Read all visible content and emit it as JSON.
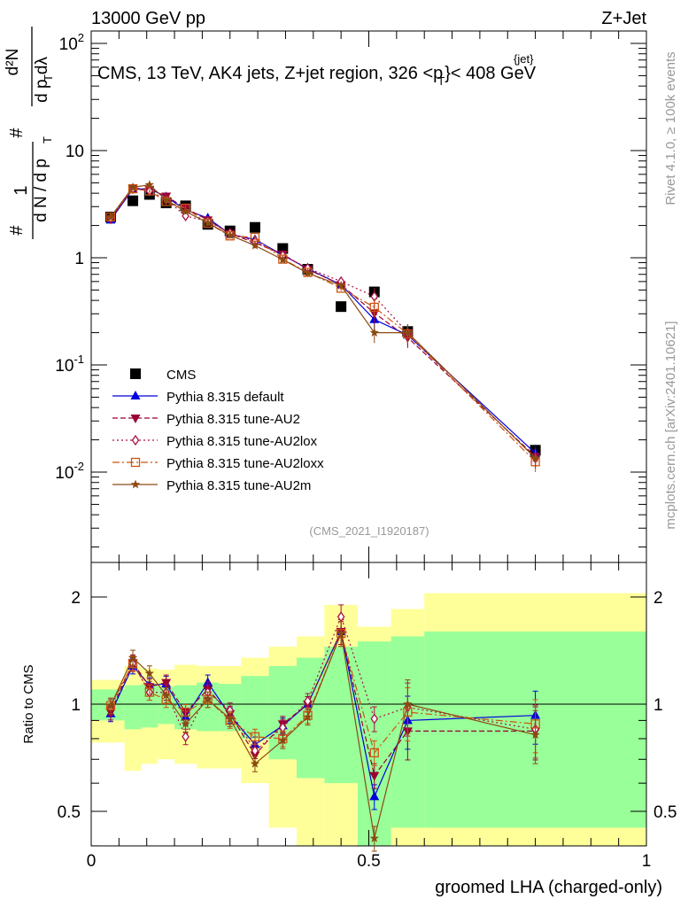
{
  "header": {
    "left_title": "13000 GeV pp",
    "right_title": "Z+Jet",
    "plot_title": "CMS, 13 TeV, AK4 jets, Z+jet region, 326 <p",
    "plot_title_sup": "{jet}",
    "plot_title_sub": "T",
    "plot_title_end": "}< 408 GeV",
    "analysis_id": "(CMS_2021_I1920187)"
  },
  "side_labels": {
    "rivet": "Rivet 4.1.0, ≥ 100k events",
    "mcplots": "mcplots.cern.ch [arXiv:2401.10621]"
  },
  "colors": {
    "cms": "#000000",
    "default": "#0000dd",
    "au2": "#990033",
    "au2lox": "#aa1144",
    "au2loxx": "#cc5511",
    "au2m": "#8b4a12",
    "band_green": "#99ff99",
    "band_yellow": "#ffff99"
  },
  "chart_data": [
    {
      "type": "scatter",
      "panel": "main",
      "yscale": "log",
      "ylabel": "# 1/(d N / d p_T) # d²N/(d p_T dλ)",
      "y_tick_labels": [
        "10^-2",
        "10^-1",
        "1",
        "10",
        "10^2"
      ],
      "xlim": [
        0,
        1
      ],
      "ylim": [
        0.0015,
        140
      ],
      "x": [
        0.035,
        0.075,
        0.105,
        0.135,
        0.17,
        0.21,
        0.25,
        0.295,
        0.345,
        0.39,
        0.45,
        0.51,
        0.57,
        0.8
      ],
      "series": [
        {
          "name": "CMS",
          "marker": "square",
          "style": "none",
          "values": [
            2.4,
            3.4,
            3.9,
            3.25,
            3.05,
            2.05,
            1.78,
            1.92,
            1.22,
            0.78,
            0.35,
            0.48,
            0.205,
            0.016
          ]
        },
        {
          "name": "Pythia 8.315 default",
          "marker": "triangle-up",
          "style": "solid",
          "values": [
            2.25,
            4.35,
            4.4,
            3.7,
            2.8,
            2.35,
            1.66,
            1.48,
            1.06,
            0.79,
            0.56,
            0.265,
            0.19,
            0.015
          ]
        },
        {
          "name": "Pythia 8.315 tune-AU2",
          "marker": "triangle-down",
          "style": "dashed",
          "values": [
            2.3,
            4.45,
            4.35,
            3.75,
            2.9,
            2.25,
            1.68,
            1.38,
            1.08,
            0.78,
            0.56,
            0.305,
            0.18,
            0.014
          ]
        },
        {
          "name": "Pythia 8.315 tune-AU2lox",
          "marker": "diamond",
          "style": "dashdot",
          "values": [
            2.35,
            4.4,
            4.2,
            3.5,
            2.45,
            2.2,
            1.7,
            1.42,
            1.05,
            0.8,
            0.6,
            0.435,
            0.2,
            0.0135
          ]
        },
        {
          "name": "Pythia 8.315 tune-AU2loxx",
          "marker": "open-square",
          "style": "longdash",
          "values": [
            2.4,
            4.4,
            4.2,
            3.35,
            2.9,
            2.1,
            1.6,
            1.55,
            0.97,
            0.73,
            0.52,
            0.345,
            0.195,
            0.0125
          ]
        },
        {
          "name": "Pythia 8.315 tune-AU2m",
          "marker": "star",
          "style": "solid",
          "values": [
            2.4,
            4.55,
            4.8,
            3.45,
            2.7,
            2.12,
            1.62,
            1.3,
            0.96,
            0.72,
            0.55,
            0.2,
            0.2,
            0.0135
          ]
        }
      ]
    },
    {
      "type": "scatter",
      "panel": "ratio",
      "xlabel": "groomed LHA (charged-only)",
      "ylabel": "Ratio to CMS",
      "xlim": [
        0,
        1
      ],
      "ylim": [
        0.35,
        2.25
      ],
      "x_tick_labels": [
        "0",
        "0.5",
        "1"
      ],
      "y_tick_labels": [
        "0.5",
        "1",
        "2"
      ],
      "x": [
        0.035,
        0.075,
        0.105,
        0.135,
        0.17,
        0.21,
        0.25,
        0.295,
        0.345,
        0.39,
        0.45,
        0.51,
        0.57,
        0.8
      ],
      "bins": [
        [
          0,
          0.06
        ],
        [
          0.06,
          0.09
        ],
        [
          0.09,
          0.12
        ],
        [
          0.12,
          0.15
        ],
        [
          0.15,
          0.19
        ],
        [
          0.19,
          0.23
        ],
        [
          0.23,
          0.27
        ],
        [
          0.27,
          0.32
        ],
        [
          0.32,
          0.37
        ],
        [
          0.37,
          0.42
        ],
        [
          0.42,
          0.48
        ],
        [
          0.48,
          0.54
        ],
        [
          0.54,
          0.6
        ],
        [
          0.6,
          1.0
        ]
      ],
      "band_green": [
        [
          0.9,
          1.1
        ],
        [
          0.85,
          1.13
        ],
        [
          0.86,
          1.14
        ],
        [
          0.88,
          1.12
        ],
        [
          0.85,
          1.13
        ],
        [
          0.84,
          1.15
        ],
        [
          0.84,
          1.14
        ],
        [
          0.8,
          1.2
        ],
        [
          0.7,
          1.28
        ],
        [
          0.62,
          1.35
        ],
        [
          0.6,
          1.45
        ],
        [
          0.4,
          1.5
        ],
        [
          0.45,
          1.55
        ],
        [
          0.45,
          1.6
        ]
      ],
      "band_yellow": [
        [
          0.78,
          1.17
        ],
        [
          0.65,
          1.28
        ],
        [
          0.68,
          1.26
        ],
        [
          0.7,
          1.25
        ],
        [
          0.68,
          1.29
        ],
        [
          0.66,
          1.28
        ],
        [
          0.66,
          1.28
        ],
        [
          0.6,
          1.35
        ],
        [
          0.45,
          1.45
        ],
        [
          0.35,
          1.55
        ],
        [
          0.35,
          1.9
        ],
        [
          0.35,
          1.65
        ],
        [
          0.35,
          1.85
        ],
        [
          0.35,
          2.05
        ]
      ],
      "series": [
        {
          "name": "Pythia 8.315 default",
          "values": [
            0.94,
            1.28,
            1.13,
            1.14,
            0.92,
            1.15,
            0.93,
            0.77,
            0.87,
            1.0,
            1.6,
            0.55,
            0.9,
            0.93
          ]
        },
        {
          "name": "Pythia 8.315 tune-AU2",
          "values": [
            0.95,
            1.31,
            1.12,
            1.15,
            0.95,
            1.1,
            0.94,
            0.72,
            0.88,
            1.0,
            1.6,
            0.63,
            0.84,
            0.84
          ]
        },
        {
          "name": "Pythia 8.315 tune-AU2lox",
          "values": [
            0.98,
            1.3,
            1.08,
            1.08,
            0.81,
            1.08,
            0.96,
            0.74,
            0.86,
            1.02,
            1.76,
            0.91,
            0.98,
            0.85
          ]
        },
        {
          "name": "Pythia 8.315 tune-AU2loxx",
          "values": [
            0.99,
            1.3,
            1.08,
            1.03,
            0.95,
            1.03,
            0.9,
            0.81,
            0.8,
            0.93,
            1.58,
            0.73,
            0.95,
            0.88
          ]
        },
        {
          "name": "Pythia 8.315 tune-AU2m",
          "values": [
            0.99,
            1.35,
            1.22,
            1.06,
            0.88,
            1.03,
            0.91,
            0.68,
            0.79,
            0.92,
            1.58,
            0.42,
            1.0,
            0.82
          ]
        }
      ]
    }
  ]
}
